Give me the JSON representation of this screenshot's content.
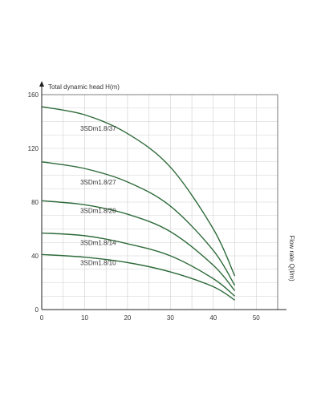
{
  "chart_data": {
    "type": "line",
    "title": "",
    "ylabel": "Total dynamic head H(m)",
    "xlabel": "Flow rate Q(l/m)",
    "xlim": [
      0,
      55
    ],
    "ylim": [
      0,
      160
    ],
    "xticks": [
      0,
      10,
      20,
      30,
      40,
      50
    ],
    "yticks": [
      0,
      40,
      80,
      120,
      160
    ],
    "grid": true,
    "legend": "inline",
    "series_color": "#2e6b3a",
    "series": [
      {
        "name": "3SDm1.8/37",
        "label_at": [
          9,
          133
        ],
        "points": [
          [
            0,
            151
          ],
          [
            10,
            145
          ],
          [
            20,
            131
          ],
          [
            30,
            106
          ],
          [
            40,
            60
          ],
          [
            45,
            25
          ]
        ]
      },
      {
        "name": "3SDm1.8/27",
        "label_at": [
          9,
          93
        ],
        "points": [
          [
            0,
            110
          ],
          [
            10,
            105
          ],
          [
            20,
            95
          ],
          [
            30,
            77
          ],
          [
            40,
            44
          ],
          [
            45,
            18
          ]
        ]
      },
      {
        "name": "3SDm1.8/20",
        "label_at": [
          9,
          72
        ],
        "points": [
          [
            0,
            81
          ],
          [
            10,
            78
          ],
          [
            20,
            71
          ],
          [
            30,
            58
          ],
          [
            40,
            33
          ],
          [
            45,
            14
          ]
        ]
      },
      {
        "name": "3SDm1.8/14",
        "label_at": [
          9,
          48
        ],
        "points": [
          [
            0,
            57
          ],
          [
            10,
            55
          ],
          [
            20,
            49
          ],
          [
            30,
            40
          ],
          [
            40,
            23
          ],
          [
            45,
            10
          ]
        ]
      },
      {
        "name": "3SDm1.8/10",
        "label_at": [
          9,
          33
        ],
        "points": [
          [
            0,
            41
          ],
          [
            10,
            39
          ],
          [
            20,
            35
          ],
          [
            30,
            28
          ],
          [
            40,
            17
          ],
          [
            45,
            7
          ]
        ]
      }
    ]
  }
}
